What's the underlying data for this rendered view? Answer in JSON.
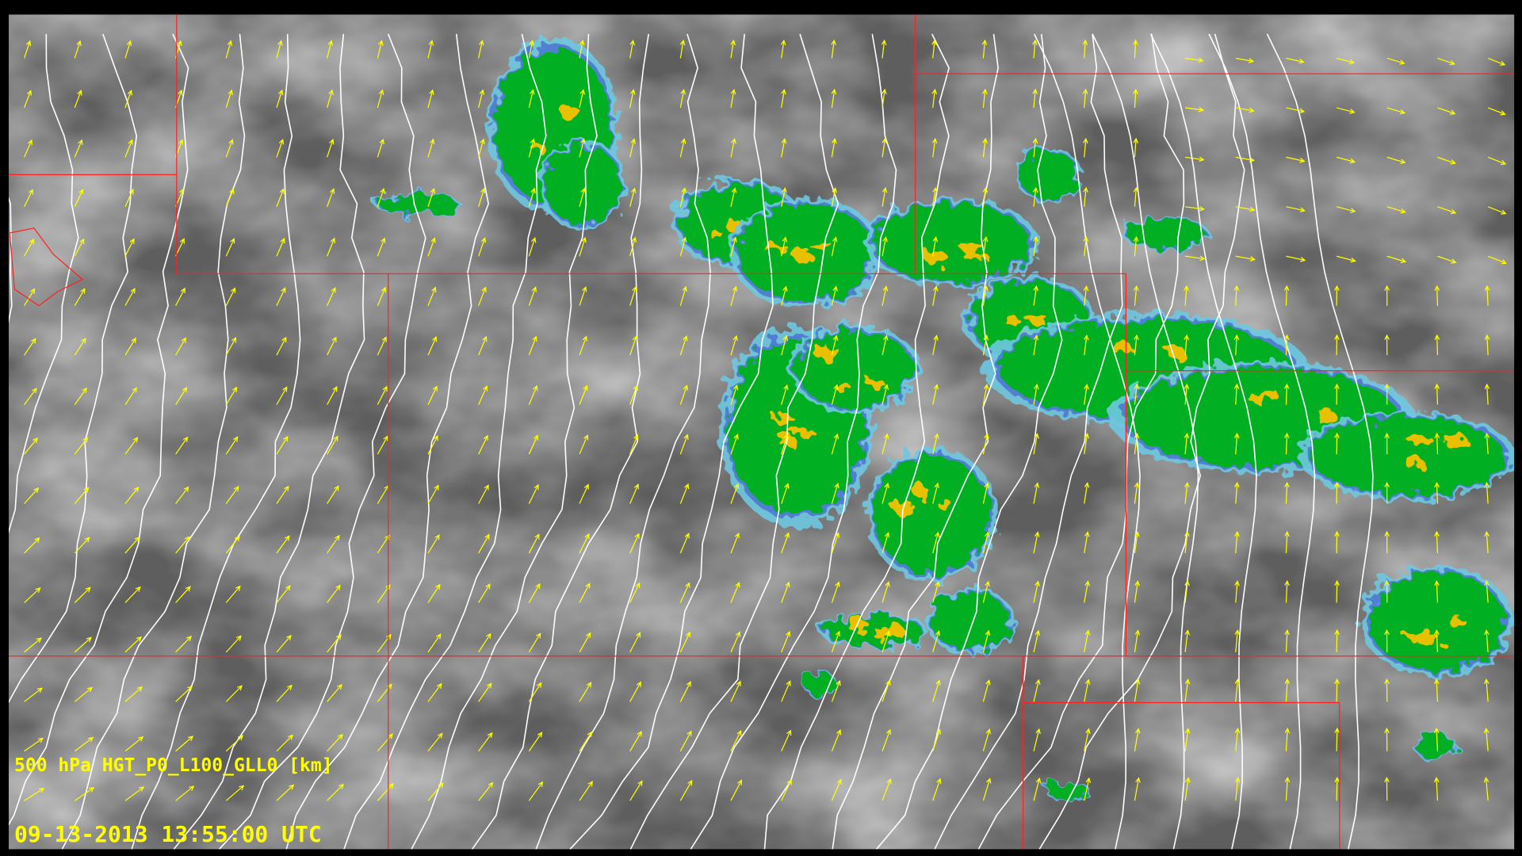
{
  "display": {
    "layer_label": "500 hPa HGT_P0_L100_GLL0 [km]",
    "timestamp": "09-13-2013 13:55:00 UTC"
  },
  "colors": {
    "background": "#000000",
    "boundaries": "#ff2020",
    "contours": "#ffffff",
    "wind_vectors": "#ffff00",
    "radar_light": "#6fc8e0",
    "radar_blue": "#4a6ed0",
    "radar_green": "#00b020",
    "radar_yellow": "#e8c000",
    "label_text": "#ffff00"
  },
  "layers": [
    "satellite-imagery-grayscale",
    "radar-reflectivity",
    "500hPa-geopotential-height-contours",
    "wind-vectors",
    "state-boundaries"
  ]
}
